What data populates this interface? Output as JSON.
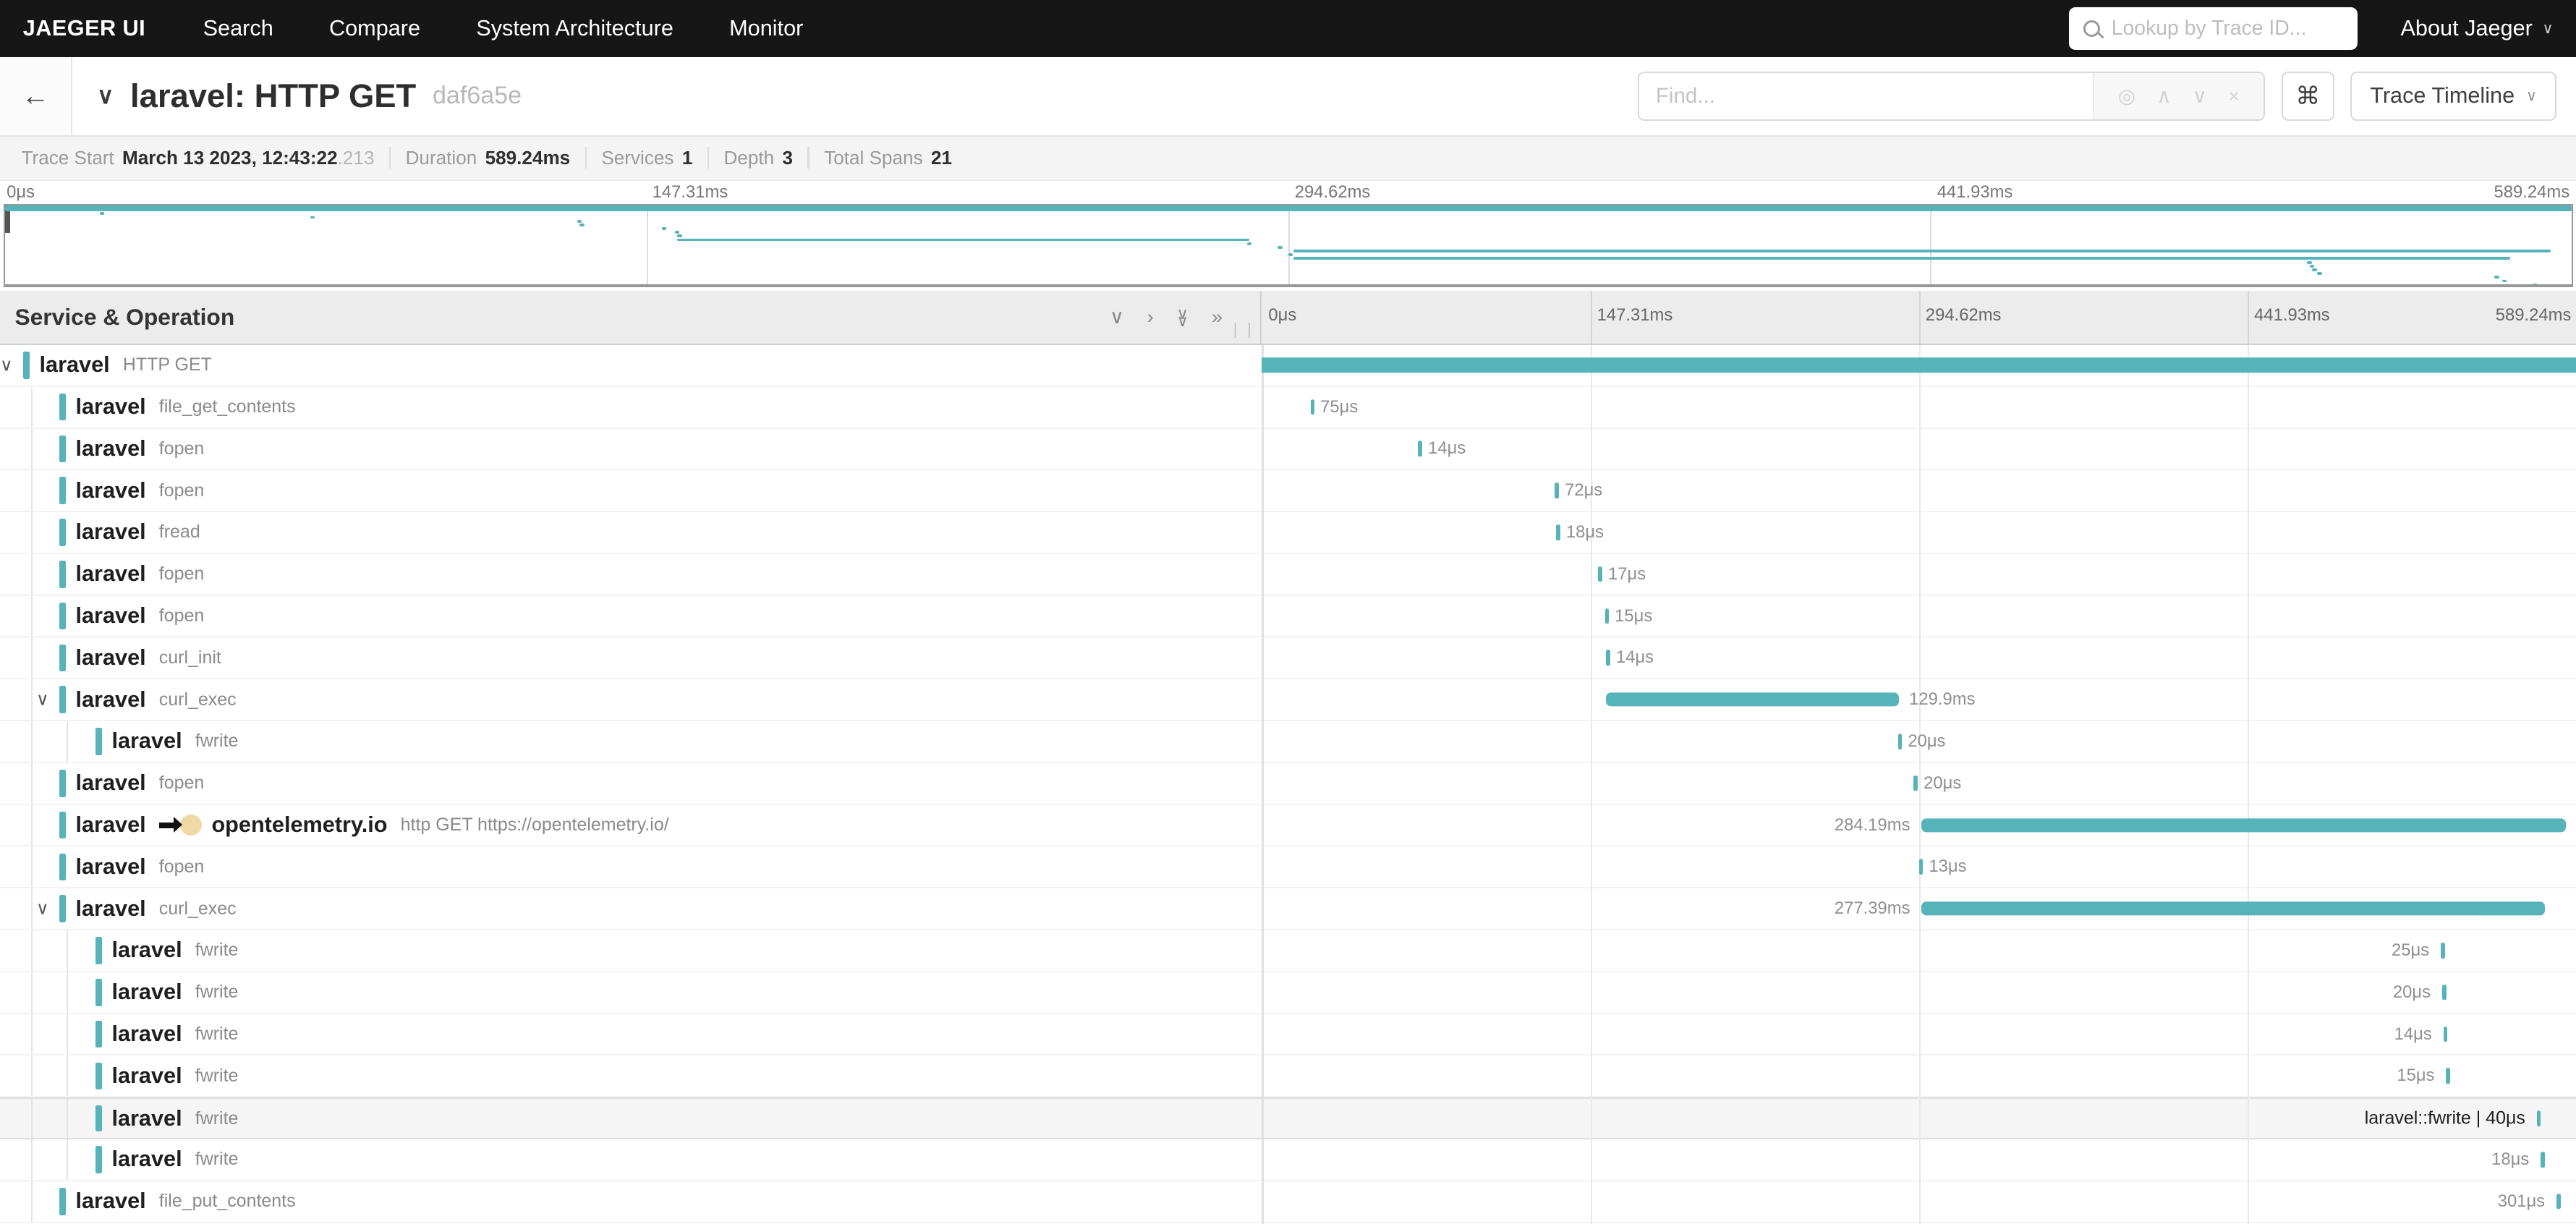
{
  "colors": {
    "accent": "#56b3b9",
    "nav_bg": "#161616",
    "hover_row_bg": "#f5f5f5",
    "peer_dot": "#f0d9a4"
  },
  "nav": {
    "brand": "JAEGER UI",
    "items": [
      "Search",
      "Compare",
      "System Architecture",
      "Monitor"
    ],
    "lookup_placeholder": "Lookup by Trace ID...",
    "about_label": "About Jaeger"
  },
  "header": {
    "back_icon": "←",
    "collapse_icon": "∨",
    "title": "laravel: HTTP GET",
    "trace_id": "daf6a5e",
    "find_placeholder": "Find...",
    "suffix_icons": {
      "target": "◎",
      "prev": "∧",
      "next": "∨",
      "clear": "×"
    },
    "shortcuts_icon": "⌘",
    "view_selector": "Trace Timeline"
  },
  "summary": {
    "items": [
      {
        "label": "Trace Start",
        "value": "March 13 2023, 12:43:22",
        "suffix": ".213"
      },
      {
        "label": "Duration",
        "value": "589.24ms"
      },
      {
        "label": "Services",
        "value": "1"
      },
      {
        "label": "Depth",
        "value": "3"
      },
      {
        "label": "Total Spans",
        "value": "21"
      }
    ]
  },
  "timeline": {
    "left_header": "Service & Operation",
    "collapse_icons": {
      "collapse_one": "∨",
      "expand_one": "›",
      "collapse_all": "∨∨",
      "expand_all": "»"
    },
    "ticks": [
      "0μs",
      "147.31ms",
      "294.62ms",
      "441.93ms",
      "589.24ms"
    ]
  },
  "spans": [
    {
      "service": "laravel",
      "operation": "HTTP GET",
      "depth": 0,
      "expandable": true,
      "bar": {
        "start": 0,
        "width": 100
      }
    },
    {
      "service": "laravel",
      "operation": "file_get_contents",
      "depth": 1,
      "tick": 3.7,
      "label": "75μs",
      "side": "right"
    },
    {
      "service": "laravel",
      "operation": "fopen",
      "depth": 1,
      "tick": 11.9,
      "label": "14μs",
      "side": "right"
    },
    {
      "service": "laravel",
      "operation": "fopen",
      "depth": 1,
      "tick": 22.3,
      "label": "72μs",
      "side": "right"
    },
    {
      "service": "laravel",
      "operation": "fread",
      "depth": 1,
      "tick": 22.4,
      "label": "18μs",
      "side": "right"
    },
    {
      "service": "laravel",
      "operation": "fopen",
      "depth": 1,
      "tick": 25.6,
      "label": "17μs",
      "side": "right"
    },
    {
      "service": "laravel",
      "operation": "fopen",
      "depth": 1,
      "tick": 26.1,
      "label": "15μs",
      "side": "right"
    },
    {
      "service": "laravel",
      "operation": "curl_init",
      "depth": 1,
      "tick": 26.2,
      "label": "14μs",
      "side": "right"
    },
    {
      "service": "laravel",
      "operation": "curl_exec",
      "depth": 1,
      "expandable": true,
      "bar": {
        "start": 26.2,
        "width": 22.3
      },
      "label": "129.9ms",
      "side": "right"
    },
    {
      "service": "laravel",
      "operation": "fwrite",
      "depth": 2,
      "tick": 48.4,
      "label": "20μs",
      "side": "right"
    },
    {
      "service": "laravel",
      "operation": "fopen",
      "depth": 1,
      "tick": 49.6,
      "label": "20μs",
      "side": "right"
    },
    {
      "service": "laravel",
      "peer": "opentelemetry.io",
      "operation": "http GET https://opentelemetry.io/",
      "depth": 1,
      "bar": {
        "start": 50.2,
        "width": 49.0
      },
      "label": "284.19ms",
      "side": "left"
    },
    {
      "service": "laravel",
      "operation": "fopen",
      "depth": 1,
      "tick": 50.0,
      "label": "13μs",
      "side": "right"
    },
    {
      "service": "laravel",
      "operation": "curl_exec",
      "depth": 1,
      "expandable": true,
      "bar": {
        "start": 50.2,
        "width": 47.4
      },
      "label": "277.39ms",
      "side": "left"
    },
    {
      "service": "laravel",
      "operation": "fwrite",
      "depth": 2,
      "tick": 89.7,
      "label": "25μs",
      "side": "left"
    },
    {
      "service": "laravel",
      "operation": "fwrite",
      "depth": 2,
      "tick": 89.8,
      "label": "20μs",
      "side": "left"
    },
    {
      "service": "laravel",
      "operation": "fwrite",
      "depth": 2,
      "tick": 89.9,
      "label": "14μs",
      "side": "left"
    },
    {
      "service": "laravel",
      "operation": "fwrite",
      "depth": 2,
      "tick": 90.1,
      "label": "15μs",
      "side": "left"
    },
    {
      "service": "laravel",
      "operation": "fwrite",
      "depth": 2,
      "tick": 97.0,
      "label": "laravel::fwrite | 40μs",
      "side": "left",
      "hovered": true,
      "label_dark": true
    },
    {
      "service": "laravel",
      "operation": "fwrite",
      "depth": 2,
      "tick": 97.3,
      "label": "18μs",
      "side": "left"
    },
    {
      "service": "laravel",
      "operation": "file_put_contents",
      "depth": 1,
      "tick": 98.5,
      "label": "301μs",
      "side": "left"
    }
  ]
}
